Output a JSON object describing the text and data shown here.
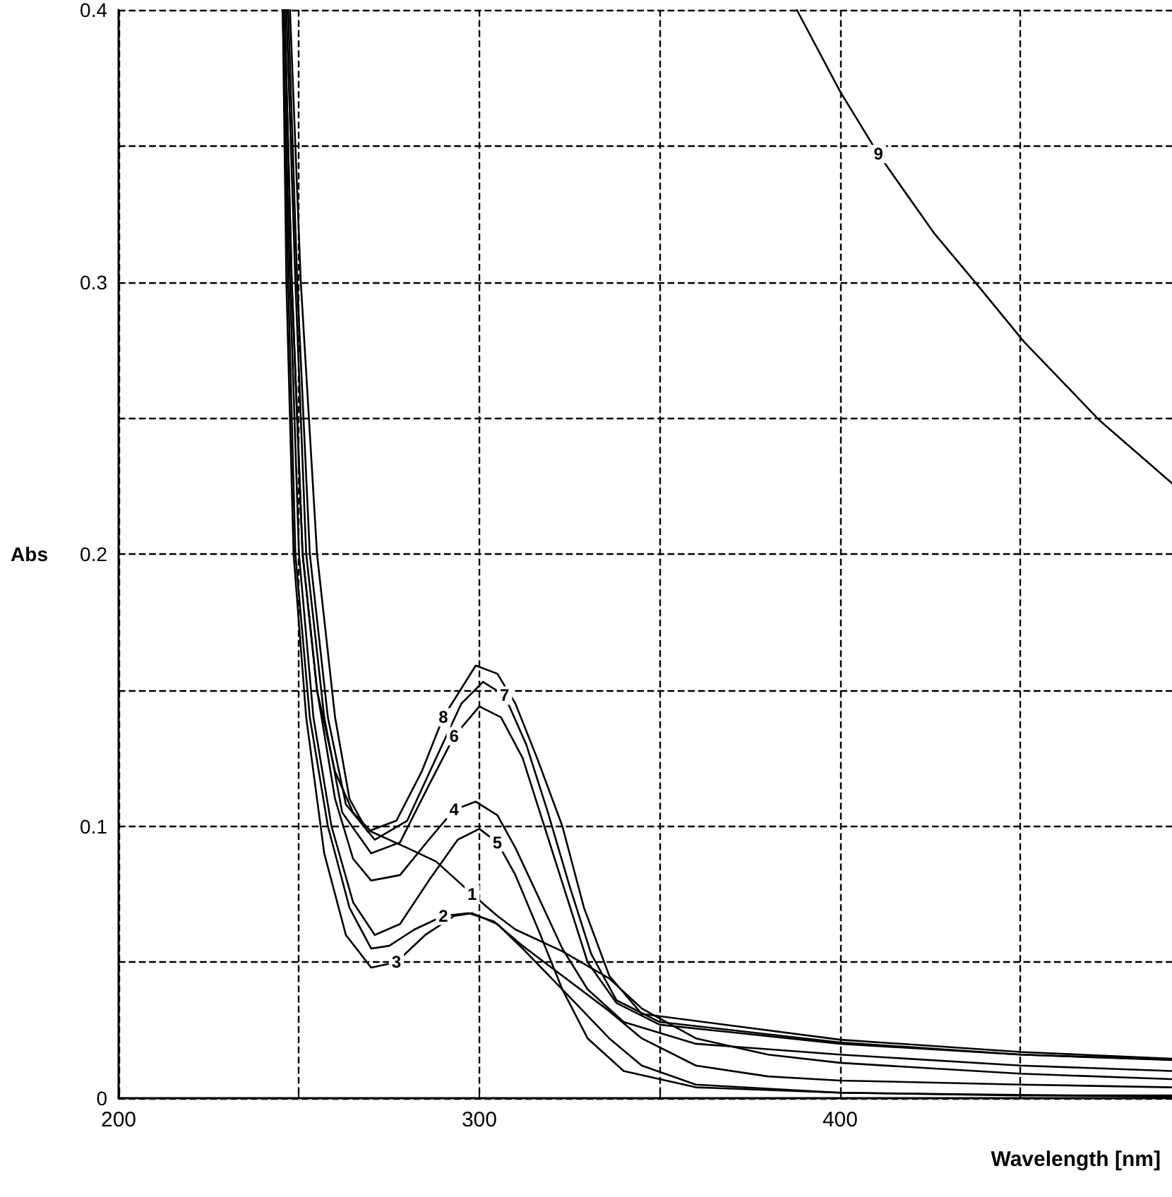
{
  "chart_data": {
    "type": "line",
    "xlabel": "Wavelength [nm]",
    "ylabel": "Abs",
    "xlim": [
      200,
      492
    ],
    "ylim": [
      0,
      0.4
    ],
    "xticks": [
      200,
      {
        "value": 250,
        "label": null
      },
      300,
      {
        "value": 350,
        "label": null
      },
      400,
      {
        "value": 450,
        "label": null
      }
    ],
    "yticks": [
      0,
      {
        "value": 0.05,
        "label": null
      },
      0.1,
      {
        "value": 0.15,
        "label": null
      },
      0.2,
      {
        "value": 0.25,
        "label": null
      },
      0.3,
      {
        "value": 0.35,
        "label": null
      },
      0.4
    ],
    "grid": true,
    "marker": "none",
    "line_style": "solid",
    "series": [
      {
        "color": "#000000",
        "x": [
          246,
          248,
          251,
          255,
          260,
          265,
          270,
          280,
          288,
          298,
          305,
          310,
          323,
          336,
          345,
          360,
          380,
          400,
          450,
          492
        ],
        "values": [
          0.4,
          0.3,
          0.2,
          0.15,
          0.12,
          0.105,
          0.098,
          0.092,
          0.087,
          0.075,
          0.067,
          0.062,
          0.054,
          0.044,
          0.033,
          0.022,
          0.016,
          0.013,
          0.009,
          0.007
        ]
      },
      {
        "color": "#000000",
        "x": [
          245.5,
          247,
          249,
          253,
          258,
          264,
          270,
          275,
          282,
          290,
          297,
          304,
          312,
          323,
          336,
          345,
          360,
          380,
          400,
          450,
          492
        ],
        "values": [
          0.4,
          0.3,
          0.2,
          0.14,
          0.1,
          0.07,
          0.055,
          0.056,
          0.062,
          0.067,
          0.068,
          0.065,
          0.056,
          0.045,
          0.032,
          0.022,
          0.012,
          0.008,
          0.0065,
          0.005,
          0.004
        ]
      },
      {
        "color": "#000000",
        "x": [
          245.5,
          246.5,
          248.5,
          252,
          257,
          263,
          270,
          277,
          285,
          293,
          298,
          305,
          312,
          323,
          336,
          345,
          360,
          400,
          450,
          492
        ],
        "values": [
          0.4,
          0.3,
          0.2,
          0.14,
          0.09,
          0.06,
          0.048,
          0.05,
          0.06,
          0.067,
          0.068,
          0.064,
          0.055,
          0.04,
          0.022,
          0.012,
          0.005,
          0.002,
          0.001,
          0.001
        ]
      },
      {
        "color": "#000000",
        "x": [
          246,
          248,
          251,
          255,
          260,
          265,
          270,
          278,
          286,
          293,
          299,
          305,
          310,
          316,
          323,
          330,
          340,
          360,
          400,
          450,
          492
        ],
        "values": [
          0.4,
          0.3,
          0.2,
          0.15,
          0.11,
          0.088,
          0.08,
          0.082,
          0.095,
          0.106,
          0.109,
          0.104,
          0.092,
          0.075,
          0.055,
          0.04,
          0.028,
          0.02,
          0.016,
          0.012,
          0.01
        ]
      },
      {
        "color": "#000000",
        "x": [
          245.5,
          247.5,
          250,
          254,
          259,
          265,
          271,
          278,
          286,
          294,
          300,
          305,
          310,
          316,
          323,
          330,
          340,
          360,
          400,
          492
        ],
        "values": [
          0.4,
          0.3,
          0.2,
          0.14,
          0.1,
          0.072,
          0.06,
          0.064,
          0.08,
          0.095,
          0.099,
          0.094,
          0.082,
          0.063,
          0.04,
          0.022,
          0.01,
          0.004,
          0.002,
          0.0005
        ]
      },
      {
        "color": "#000000",
        "x": [
          246.5,
          249,
          252,
          257,
          262,
          270,
          278,
          286,
          293,
          300,
          306,
          312,
          318,
          324,
          330,
          338,
          350,
          400,
          450,
          492
        ],
        "values": [
          0.4,
          0.3,
          0.2,
          0.14,
          0.105,
          0.09,
          0.094,
          0.115,
          0.133,
          0.144,
          0.14,
          0.125,
          0.1,
          0.075,
          0.05,
          0.035,
          0.027,
          0.02,
          0.016,
          0.014
        ]
      },
      {
        "color": "#000000",
        "x": [
          247,
          249.5,
          253,
          258,
          263,
          271,
          280,
          288,
          295,
          301,
          307,
          313,
          319,
          325,
          331,
          338,
          350,
          400,
          450,
          492
        ],
        "values": [
          0.4,
          0.3,
          0.2,
          0.14,
          0.108,
          0.095,
          0.102,
          0.125,
          0.145,
          0.153,
          0.148,
          0.13,
          0.105,
          0.078,
          0.053,
          0.036,
          0.028,
          0.0205,
          0.016,
          0.0142
        ]
      },
      {
        "color": "#000000",
        "x": [
          247.5,
          250.5,
          255,
          260,
          264,
          269,
          277,
          284,
          290,
          299,
          305,
          310,
          316,
          323,
          329,
          336,
          345,
          400,
          450,
          492
        ],
        "values": [
          0.4,
          0.3,
          0.2,
          0.14,
          0.11,
          0.098,
          0.102,
          0.12,
          0.14,
          0.159,
          0.156,
          0.145,
          0.125,
          0.1,
          0.07,
          0.045,
          0.031,
          0.0215,
          0.017,
          0.0145
        ]
      },
      {
        "color": "#000000",
        "x": [
          388,
          400,
          410.6,
          426,
          438,
          451,
          472,
          492
        ],
        "values": [
          0.4,
          0.37,
          0.347,
          0.318,
          0.299,
          0.278,
          0.249,
          0.226
        ]
      }
    ],
    "annotations": [
      {
        "text": "8",
        "x": 290,
        "y": 0.14
      },
      {
        "text": "7",
        "x": 307,
        "y": 0.148
      },
      {
        "text": "6",
        "x": 293,
        "y": 0.133
      },
      {
        "text": "4",
        "x": 293,
        "y": 0.106
      },
      {
        "text": "5",
        "x": 305,
        "y": 0.094
      },
      {
        "text": "1",
        "x": 298,
        "y": 0.075
      },
      {
        "text": "2",
        "x": 290,
        "y": 0.067
      },
      {
        "text": "3",
        "x": 277,
        "y": 0.05
      },
      {
        "text": "9",
        "x": 410.6,
        "y": 0.347
      }
    ]
  }
}
